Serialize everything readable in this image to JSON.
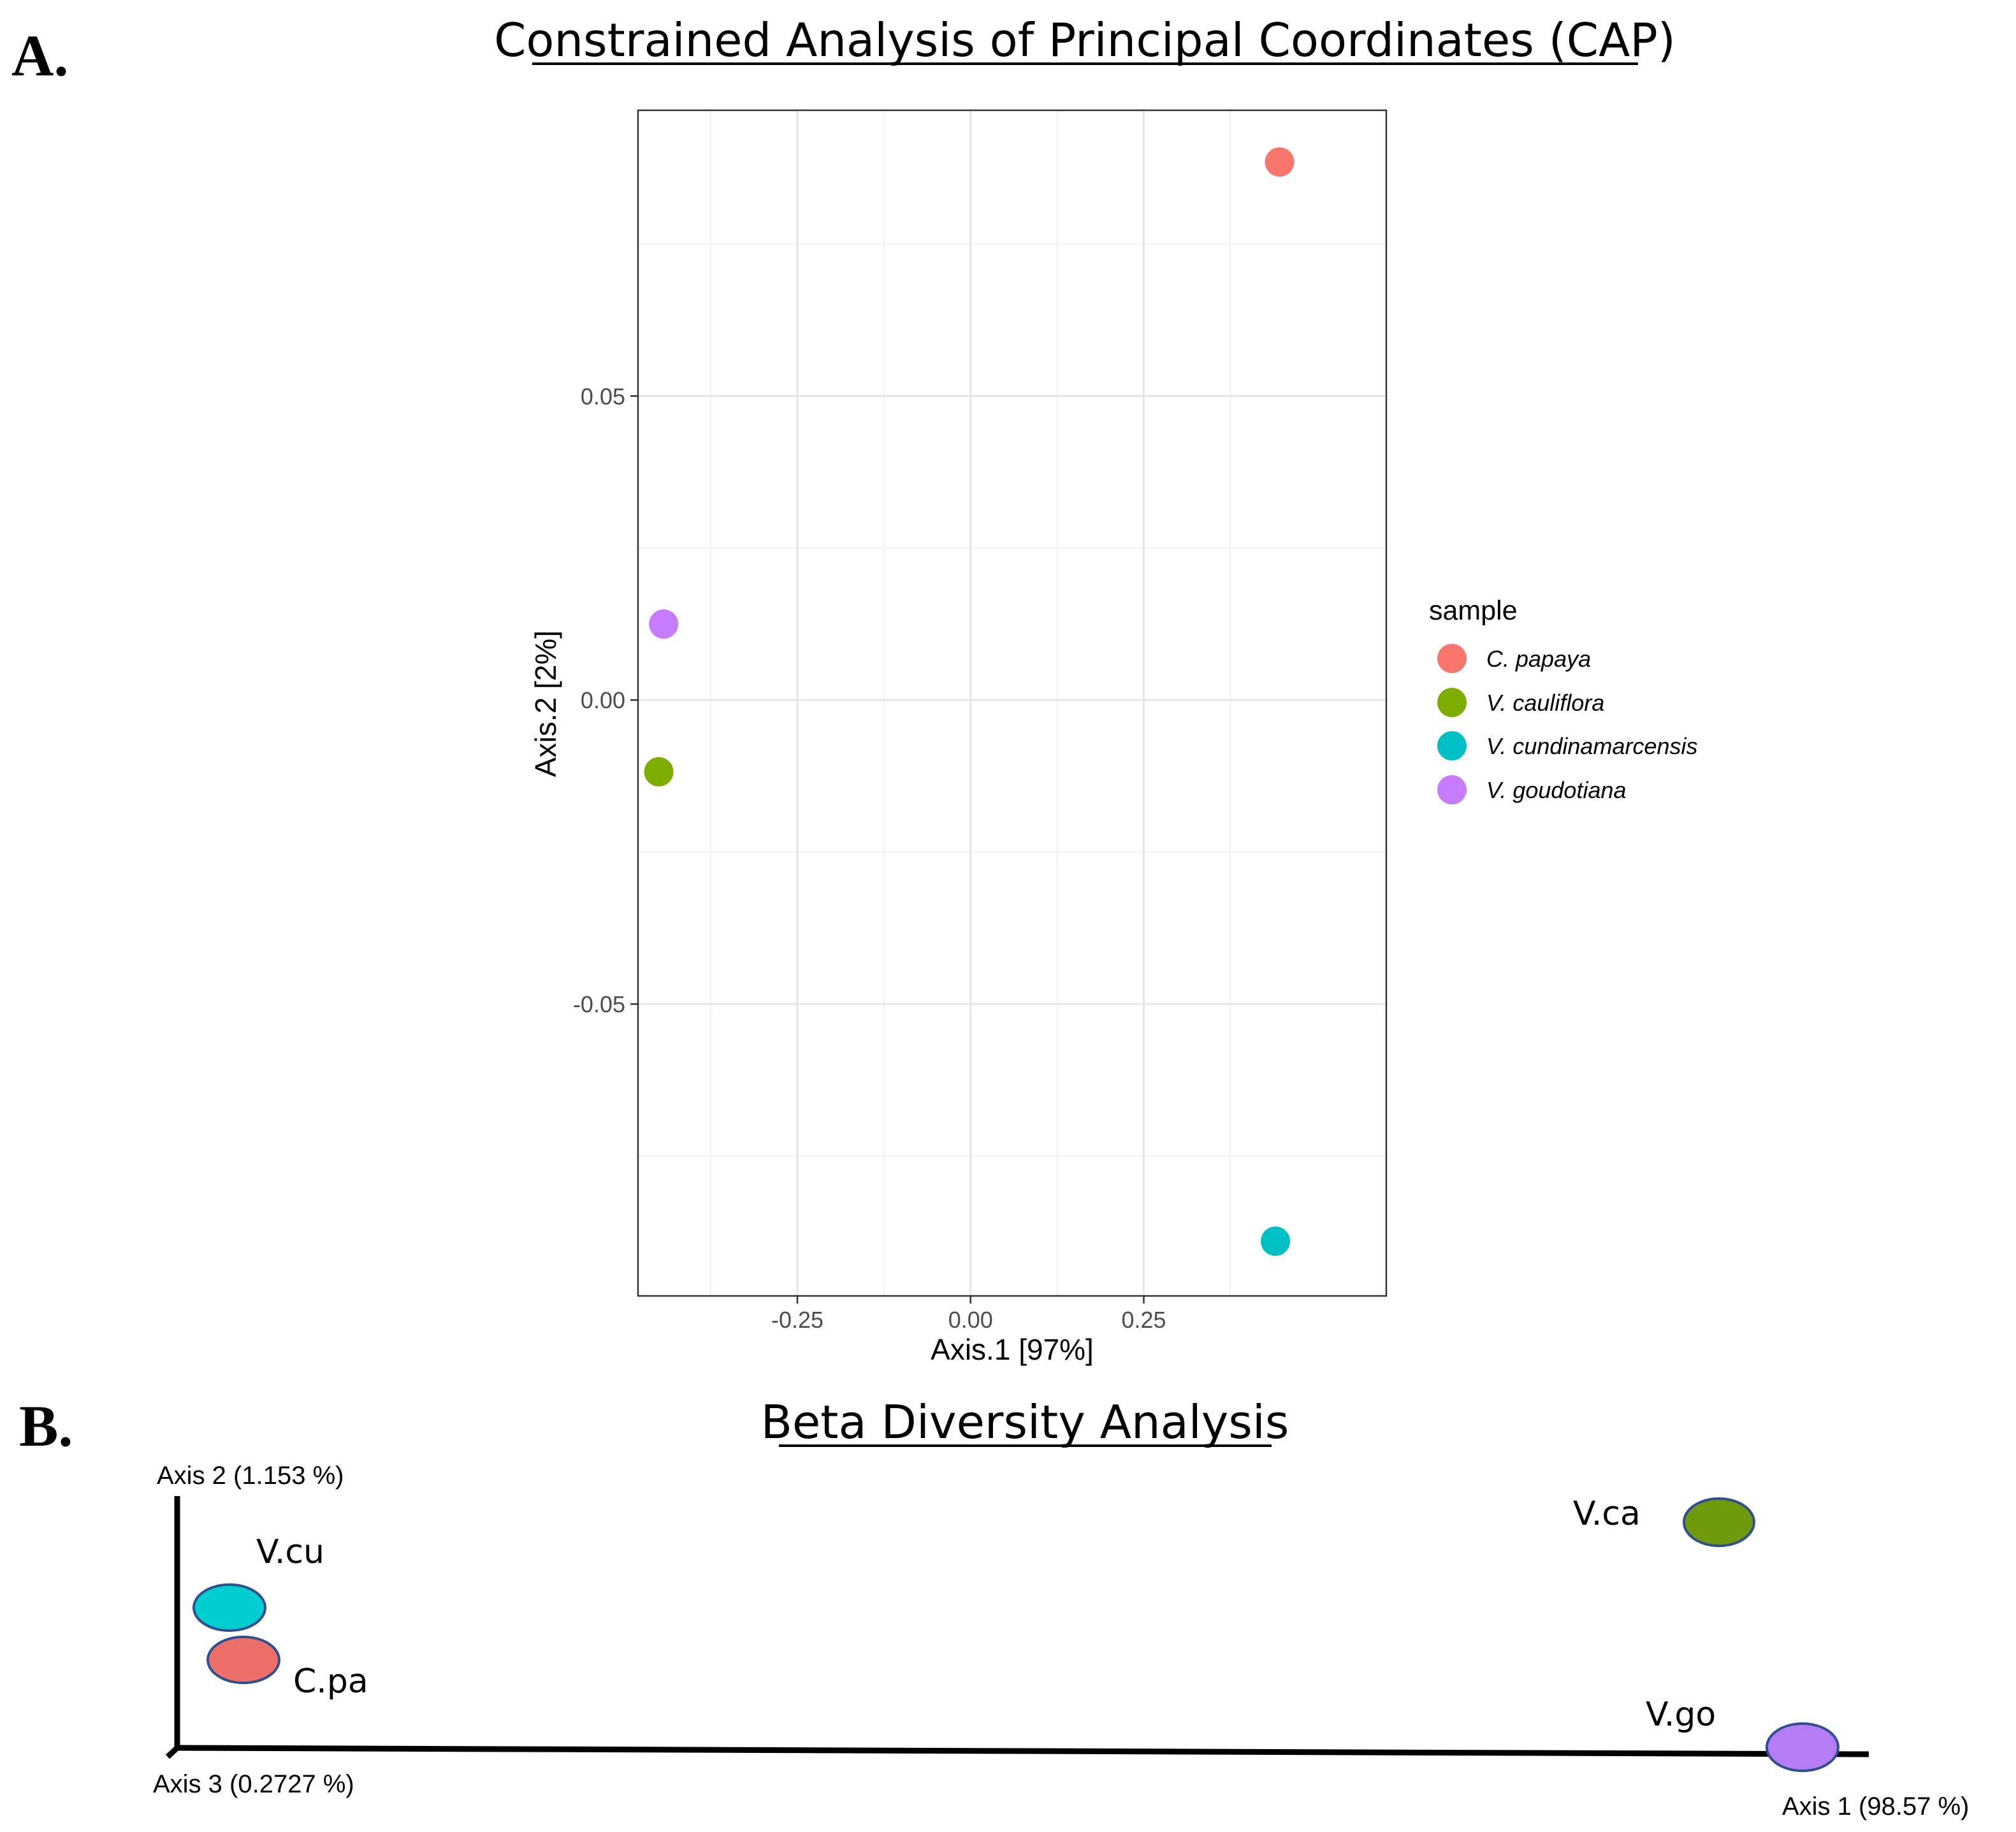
{
  "chart_data": [
    {
      "type": "scatter",
      "panel": "A.",
      "title": "Constrained Analysis of Principal Coordinates (CAP)",
      "xlabel": "Axis.1 [97%]",
      "ylabel": "Axis.2 [2%]",
      "xlim": [
        -0.48,
        0.6
      ],
      "ylim": [
        -0.098,
        0.097
      ],
      "xticks": [
        -0.25,
        0.0,
        0.25
      ],
      "xtick_labels": [
        "-0.25",
        "0.00",
        "0.25"
      ],
      "yticks": [
        0.05,
        0.0,
        -0.05
      ],
      "ytick_labels": [
        "0.05",
        "0.00",
        "-0.05"
      ],
      "x_minor": [
        -0.375,
        -0.125,
        0.125,
        0.375
      ],
      "y_minor": [
        0.075,
        0.025,
        -0.025,
        -0.075
      ],
      "grid": true,
      "legend": {
        "title": "sample",
        "position": "right",
        "entries": [
          "C. papaya",
          "V. cauliflora",
          "V. cundinamarcensis",
          "V. goudotiana"
        ]
      },
      "points": [
        {
          "sample": "C. papaya",
          "x": 0.446,
          "y": 0.0885,
          "color": "#F8766D"
        },
        {
          "sample": "V. cauliflora",
          "x": -0.45,
          "y": -0.0118,
          "color": "#7CAE00"
        },
        {
          "sample": "V. cundinamarcensis",
          "x": 0.44,
          "y": -0.089,
          "color": "#00BFC4"
        },
        {
          "sample": "V. goudotiana",
          "x": -0.443,
          "y": 0.0125,
          "color": "#C77CFF"
        }
      ]
    },
    {
      "type": "scatter",
      "panel": "B.",
      "title": "Beta Diversity Analysis",
      "axis_labels": {
        "axis1": "Axis 1 (98.57 %)",
        "axis2": "Axis 2 (1.153 %)",
        "axis3": "Axis 3 (0.2727 %)"
      },
      "outline_color": "#2f4f8f",
      "points": [
        {
          "label": "V.cu",
          "color": "#00CED1"
        },
        {
          "label": "C.pa",
          "color": "#EC6F6A"
        },
        {
          "label": "V.ca",
          "color": "#6F9A0E"
        },
        {
          "label": "V.go",
          "color": "#B57CF6"
        }
      ]
    }
  ]
}
